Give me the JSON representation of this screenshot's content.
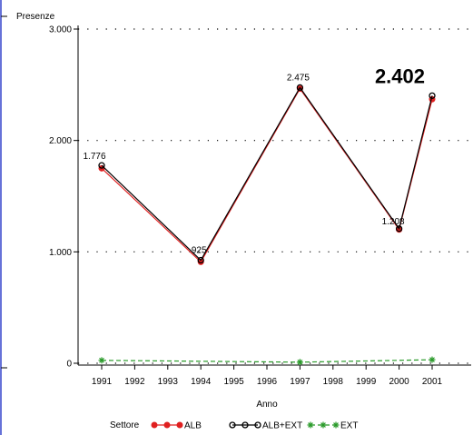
{
  "chart_data": {
    "type": "line",
    "ylabel": "Presenze",
    "xlabel": "Anno",
    "x_ticks": [
      "1991",
      "1992",
      "1993",
      "1994",
      "1995",
      "1996",
      "1997",
      "1998",
      "1999",
      "2000",
      "2001"
    ],
    "y_ticks": [
      {
        "value": 0,
        "label": "0"
      },
      {
        "value": 1000,
        "label": "1.000"
      },
      {
        "value": 2000,
        "label": "2.000"
      },
      {
        "value": 3000,
        "label": "3.000"
      }
    ],
    "ylim": [
      0,
      3000
    ],
    "grid": "horizontal dotted",
    "legend_title": "Settore",
    "legend_position": "bottom",
    "series": [
      {
        "name": "ALB",
        "color": "#e02020",
        "marker": "filled-circle",
        "x": [
          1991,
          1994,
          1997,
          2000,
          2001
        ],
        "y": [
          1750,
          910,
          2465,
          1200,
          2370
        ]
      },
      {
        "name": "ALB+EXT",
        "color": "#000000",
        "marker": "open-circle",
        "x": [
          1991,
          1994,
          1997,
          2000,
          2001
        ],
        "y": [
          1776,
          925,
          2475,
          1208,
          2402
        ]
      },
      {
        "name": "EXT",
        "color": "#2a9a2a",
        "marker": "star",
        "x": [
          1991,
          1997,
          2001
        ],
        "y": [
          26,
          10,
          32
        ]
      }
    ],
    "data_labels": [
      {
        "x": 1991,
        "y": 1776,
        "text": "1.776"
      },
      {
        "x": 1994,
        "y": 925,
        "text": "925"
      },
      {
        "x": 1997,
        "y": 2475,
        "text": "2.475"
      },
      {
        "x": 2000,
        "y": 1208,
        "text": "1.208"
      }
    ],
    "highlight_label": {
      "x": 2001,
      "y": 2402,
      "text": "2.402"
    }
  }
}
